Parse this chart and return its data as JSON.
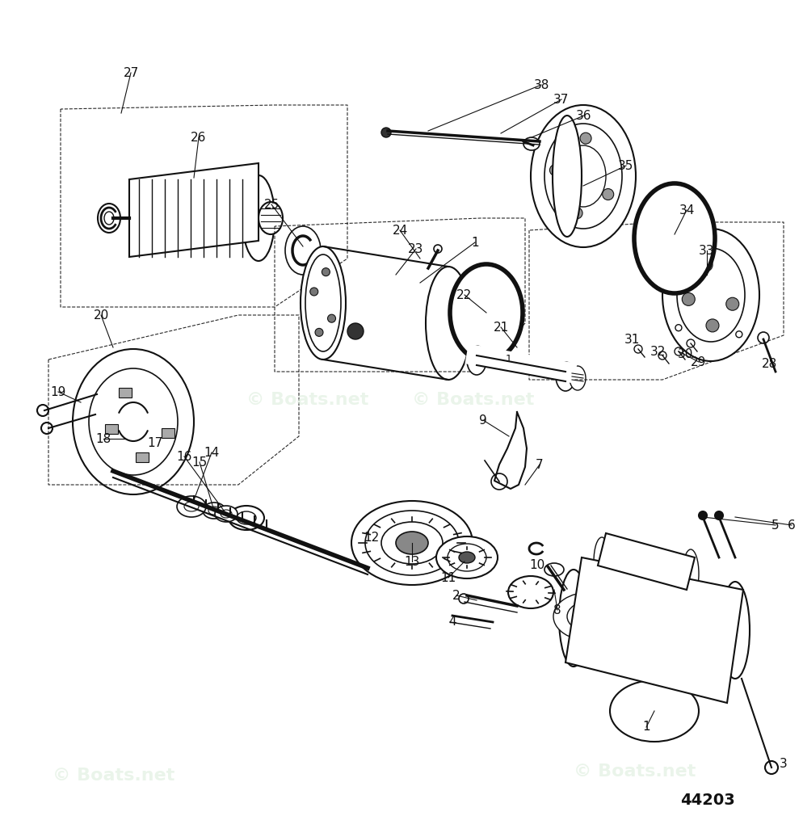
{
  "bg_color": "#ffffff",
  "diagram_color": "#111111",
  "watermark_color": "#ddeedd",
  "watermark_text": "© Boats.net",
  "part_number": "44203",
  "figsize": [
    9.94,
    10.36
  ],
  "dpi": 100,
  "wm_alpha": 0.6,
  "wm_fontsize": 16,
  "label_fontsize": 11,
  "pn_fontsize": 14,
  "lw_main": 1.5,
  "lw_thin": 0.8,
  "lw_thick": 2.5
}
